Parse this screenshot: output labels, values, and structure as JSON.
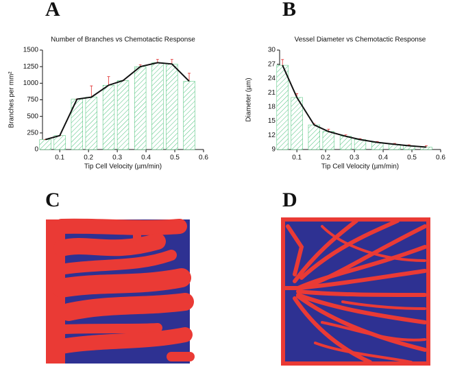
{
  "panel_labels": [
    "A",
    "B",
    "C",
    "D"
  ],
  "chart_data": [
    {
      "type": "bar",
      "title": "Number of Branches vs Chemotactic Response",
      "x_label": "Tip Cell Velocity (µm/min)",
      "y_label": "Branches per mm²",
      "x": [
        0.05,
        0.1,
        0.16,
        0.21,
        0.27,
        0.32,
        0.38,
        0.44,
        0.49,
        0.55
      ],
      "values": [
        150,
        210,
        760,
        790,
        970,
        1040,
        1250,
        1310,
        1290,
        1030
      ],
      "errors": [
        0,
        0,
        0,
        170,
        130,
        0,
        30,
        50,
        70,
        120
      ],
      "color": "#3fbf6f",
      "line_color": "#111111",
      "error_color": "#e03030",
      "xlim": [
        0.04,
        0.6
      ],
      "xticks": [
        0.1,
        0.2,
        0.3,
        0.4,
        0.5,
        0.6
      ],
      "ylim": [
        0,
        1500
      ],
      "yticks": [
        0,
        250,
        500,
        750,
        1000,
        1250,
        1500
      ]
    },
    {
      "type": "bar",
      "title": "Vessel Diameter vs Chemotactic Response",
      "x_label": "Tip Cell Velocity (µm/min)",
      "y_label": "Diameter (µm)",
      "x": [
        0.05,
        0.1,
        0.16,
        0.21,
        0.27,
        0.32,
        0.38,
        0.44,
        0.49,
        0.55
      ],
      "values": [
        26.8,
        20,
        14.2,
        12.8,
        11.8,
        11.1,
        10.5,
        10.1,
        9.8,
        9.5
      ],
      "errors": [
        1.2,
        0.8,
        0.3,
        0.5,
        0.3,
        0.2,
        0.2,
        0.2,
        0.2,
        0.3
      ],
      "color": "#3fbf6f",
      "line_color": "#111111",
      "error_color": "#e03030",
      "xlim": [
        0.04,
        0.6
      ],
      "xticks": [
        0.1,
        0.2,
        0.3,
        0.4,
        0.5,
        0.6
      ],
      "ylim": [
        9,
        30
      ],
      "yticks": [
        9,
        12,
        15,
        18,
        21,
        24,
        27,
        30
      ]
    }
  ]
}
